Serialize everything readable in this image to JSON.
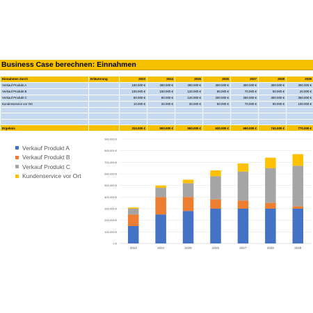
{
  "title": "Business Case berechnen: Einnahmen",
  "table": {
    "headers": [
      "Einnahmen durch",
      "Erläuterung",
      "2023",
      "2024",
      "2025",
      "2026",
      "2027",
      "2028",
      "2029"
    ],
    "rows": [
      {
        "label": "Verkauf Produkt A",
        "note": "",
        "values": [
          "150.000 €",
          "250.000 €",
          "280.000 €",
          "300.000 €",
          "300.000 €",
          "300.000 €",
          "300.000 €"
        ]
      },
      {
        "label": "Verkauf Produkt B",
        "note": "",
        "values": [
          "100.000 €",
          "150.000 €",
          "120.000 €",
          "80.000 €",
          "70.000 €",
          "50.000 €",
          "20.000 €"
        ]
      },
      {
        "label": "Verkauf Produkt C",
        "note": "",
        "values": [
          "50.000 €",
          "80.000 €",
          "120.000 €",
          "200.000 €",
          "250.000 €",
          "300.000 €",
          "350.000 €"
        ]
      },
      {
        "label": "Kundenservice vor Ort",
        "note": "",
        "values": [
          "10.000 €",
          "20.000 €",
          "30.000 €",
          "50.000 €",
          "70.000 €",
          "90.000 €",
          "100.000 €"
        ]
      }
    ],
    "total": {
      "label": "Ergebnis",
      "values": [
        "310.000 €",
        "500.000 €",
        "550.000 €",
        "630.000 €",
        "690.000 €",
        "740.000 €",
        "770.000 €"
      ]
    }
  },
  "chart_data": {
    "type": "bar",
    "stacked": true,
    "categories": [
      "2023",
      "2024",
      "2025",
      "2026",
      "2027",
      "2028",
      "2029"
    ],
    "series": [
      {
        "name": "Verkauf Produkt A",
        "color": "#4472c4",
        "values": [
          150000,
          250000,
          280000,
          300000,
          300000,
          300000,
          300000
        ]
      },
      {
        "name": "Verkauf Produkt B",
        "color": "#ed7d31",
        "values": [
          100000,
          150000,
          120000,
          80000,
          70000,
          50000,
          20000
        ]
      },
      {
        "name": "Verkauf Produkt C",
        "color": "#a5a5a5",
        "values": [
          50000,
          80000,
          120000,
          200000,
          250000,
          300000,
          350000
        ]
      },
      {
        "name": "Kundenservice vor Ort",
        "color": "#ffc000",
        "values": [
          10000,
          20000,
          30000,
          50000,
          70000,
          90000,
          100000
        ]
      }
    ],
    "ylim": [
      0,
      900000
    ],
    "yticks": [
      0,
      100000,
      200000,
      300000,
      400000,
      500000,
      600000,
      700000,
      800000,
      900000
    ],
    "ytick_labels": [
      "0 €",
      "100.000 €",
      "200.000 €",
      "300.000 €",
      "400.000 €",
      "500.000 €",
      "600.000 €",
      "700.000 €",
      "800.000 €",
      "900.000 €"
    ],
    "legend_position": "left",
    "grid": true
  }
}
